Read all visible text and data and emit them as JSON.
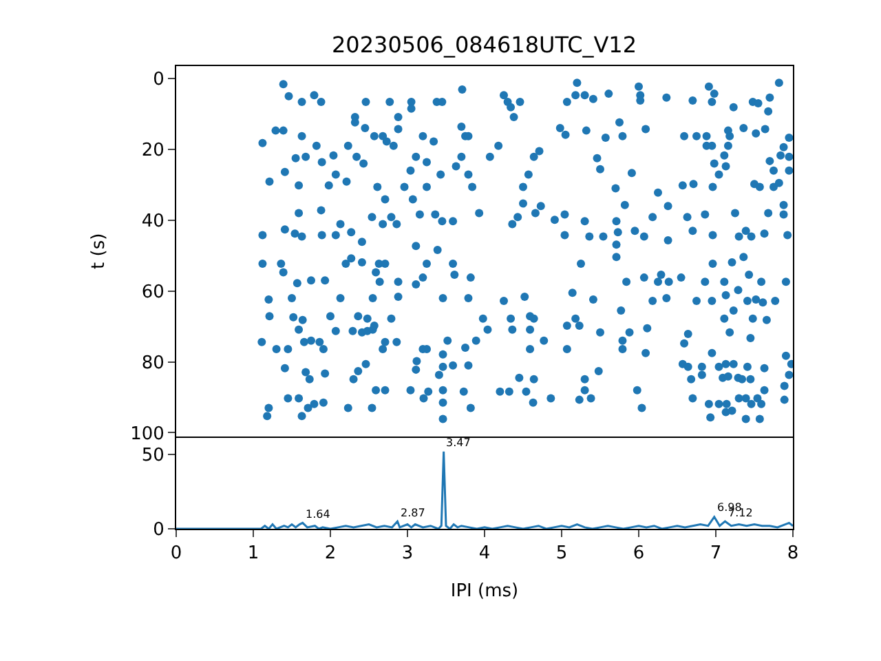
{
  "chart_data": [
    {
      "type": "scatter",
      "title": "20230506_084618UTC_V12",
      "ylabel": "t (s)",
      "marker": "circle",
      "tick_labels": "y",
      "xlim": [
        0,
        8
      ],
      "xticks": [
        0,
        1,
        2,
        3,
        4,
        5,
        6,
        7,
        8
      ],
      "ylim": [
        101,
        -3.5
      ],
      "yticks": [
        0,
        20,
        40,
        60,
        80,
        100
      ],
      "series": [
        {
          "color": "#1f77b4",
          "x": [
            1.39,
            1.46,
            1.63,
            1.79,
            1.88,
            2.46,
            2.77,
            3.05,
            3.05,
            3.38,
            3.45,
            3.71,
            2.32,
            2.32,
            1.29,
            1.39,
            1.63,
            2.45,
            2.57,
            2.68,
            2.73,
            2.82,
            2.88,
            2.88,
            3.2,
            3.34,
            3.7,
            3.75,
            5.2,
            4.25,
            4.3,
            4.34,
            4.38,
            4.46,
            5.07,
            5.18,
            5.3,
            5.41,
            5.61,
            6.0,
            6.02,
            6.02,
            6.36,
            6.7,
            6.91,
            6.98,
            6.95,
            7.23,
            7.48,
            7.55,
            7.7,
            7.82,
            7.68,
            4.98,
            5.05,
            5.32,
            5.75,
            5.79,
            6.09,
            5.57,
            6.59,
            6.75,
            6.88,
            7.16,
            7.18,
            7.36,
            7.52,
            7.64,
            7.95,
            6.88,
            6.95,
            7.16,
            1.12,
            1.21,
            1.41,
            1.59,
            1.59,
            1.41,
            1.54,
            1.63,
            1.12,
            1.89,
            2.07,
            1.88,
            1.98,
            2.07,
            2.13,
            2.21,
            2.27,
            2.27,
            2.41,
            1.55,
            1.68,
            1.82,
            1.89,
            2.04,
            2.23,
            2.34,
            2.43,
            2.61,
            2.71,
            2.54,
            2.68,
            2.79,
            2.86,
            2.96,
            3.04,
            3.11,
            3.07,
            3.16,
            3.11,
            3.25,
            3.25,
            3.36,
            3.39,
            3.45,
            3.59,
            3.43,
            3.63,
            3.7,
            3.79,
            3.84,
            3.93,
            4.07,
            3.79,
            4.18,
            4.36,
            4.43,
            4.5,
            4.5,
            4.57,
            4.64,
            4.71,
            4.66,
            4.73,
            4.91,
            5.04,
            5.04,
            5.3,
            5.36,
            5.46,
            5.5,
            5.54,
            5.7,
            5.82,
            5.91,
            5.71,
            5.73,
            5.71,
            5.95,
            6.07,
            6.18,
            6.25,
            6.38,
            6.38,
            6.57,
            6.71,
            6.63,
            6.7,
            6.86,
            6.96,
            6.96,
            6.98,
            7.04,
            7.13,
            7.11,
            7.25,
            7.3,
            7.39,
            7.46,
            7.5,
            7.57,
            7.63,
            7.68,
            7.75,
            7.82,
            7.88,
            7.88,
            7.93,
            7.7,
            7.75,
            7.84,
            7.95,
            7.88,
            7.95,
            1.12,
            1.36,
            1.39,
            1.57,
            1.75,
            1.93,
            2.2,
            2.41,
            2.63,
            2.71,
            2.59,
            2.64,
            2.88,
            3.11,
            3.2,
            3.25,
            3.59,
            3.61,
            3.82,
            1.2,
            1.5,
            1.21,
            1.52,
            1.64,
            1.59,
            2.13,
            2.0,
            2.07,
            2.29,
            2.36,
            2.48,
            2.41,
            2.48,
            2.55,
            2.57,
            2.55,
            2.79,
            2.88,
            1.11,
            1.3,
            1.45,
            1.66,
            1.75,
            1.86,
            1.91,
            1.41,
            1.68,
            1.73,
            1.93,
            2.3,
            2.36,
            2.46,
            2.68,
            2.71,
            2.86,
            2.59,
            2.71,
            3.04,
            3.21,
            3.27,
            3.12,
            3.11,
            3.2,
            3.25,
            3.41,
            3.46,
            3.46,
            3.52,
            3.59,
            3.46,
            3.46,
            3.46,
            3.73,
            3.75,
            3.79,
            3.82,
            3.98,
            4.04,
            3.46,
            3.79,
            1.2,
            1.18,
            1.45,
            1.59,
            1.63,
            1.71,
            1.79,
            1.91,
            2.23,
            2.54,
            5.71,
            5.25,
            5.14,
            4.25,
            4.52,
            4.34,
            4.36,
            4.59,
            4.64,
            4.59,
            4.77,
            4.59,
            3.89,
            5.07,
            5.18,
            5.23,
            5.07,
            5.41,
            5.5,
            5.84,
            5.77,
            5.88,
            5.79,
            5.79,
            6.09,
            6.11,
            6.07,
            6.25,
            6.29,
            6.39,
            6.18,
            6.36,
            6.55,
            6.86,
            6.75,
            6.95,
            6.96,
            7.11,
            7.21,
            7.36,
            7.43,
            7.59,
            7.91,
            7.29,
            7.13,
            7.41,
            7.52,
            7.61,
            7.77,
            7.23,
            7.11,
            7.48,
            7.66,
            7.18,
            7.45,
            6.64,
            6.59,
            7.91,
            7.98,
            7.95,
            7.89,
            7.89,
            6.57,
            6.64,
            6.82,
            6.82,
            6.68,
            6.95,
            7.04,
            7.13,
            7.23,
            7.09,
            7.16,
            7.29,
            7.34,
            7.41,
            7.45,
            7.63,
            7.63,
            7.3,
            7.39,
            7.54,
            7.46,
            7.59,
            6.7,
            6.91,
            7.04,
            7.14,
            7.13,
            7.21,
            6.93,
            7.39,
            7.57,
            5.48,
            5.3,
            5.3,
            5.38,
            5.23,
            5.98,
            6.04,
            4.45,
            4.64,
            4.2,
            4.32,
            4.54,
            4.63,
            4.86
          ],
          "values": [
            1.6,
            5.0,
            6.6,
            4.7,
            6.6,
            6.6,
            6.6,
            6.6,
            8.5,
            6.6,
            6.6,
            3.1,
            10.9,
            12.4,
            14.7,
            14.7,
            16.3,
            14.0,
            16.3,
            16.3,
            17.8,
            19.0,
            10.9,
            14.3,
            16.3,
            17.8,
            13.6,
            16.3,
            1.2,
            4.7,
            6.6,
            8.1,
            10.9,
            6.6,
            6.6,
            4.7,
            4.7,
            5.8,
            4.3,
            2.3,
            4.7,
            6.2,
            5.4,
            6.2,
            2.3,
            4.3,
            6.6,
            8.1,
            6.6,
            7.0,
            5.4,
            1.2,
            9.3,
            14.0,
            15.9,
            14.7,
            12.4,
            16.3,
            14.3,
            16.7,
            16.3,
            16.3,
            16.3,
            14.7,
            16.3,
            14.0,
            15.5,
            14.3,
            16.7,
            19.0,
            19.0,
            19.0,
            18.2,
            29.1,
            26.4,
            30.2,
            38.0,
            42.6,
            43.8,
            44.6,
            44.2,
            44.2,
            44.2,
            37.2,
            30.2,
            27.1,
            41.1,
            29.1,
            43.4,
            50.8,
            46.1,
            22.5,
            22.1,
            19.0,
            23.6,
            21.7,
            19.0,
            22.1,
            24.0,
            30.6,
            34.1,
            39.1,
            41.1,
            39.1,
            41.1,
            30.6,
            26.0,
            22.1,
            34.1,
            38.4,
            47.3,
            23.6,
            30.6,
            38.4,
            48.4,
            40.3,
            40.3,
            27.1,
            24.8,
            22.1,
            27.1,
            30.6,
            38.0,
            22.1,
            16.3,
            19.0,
            41.1,
            39.1,
            35.3,
            30.6,
            27.1,
            22.1,
            20.5,
            38.0,
            36.0,
            39.9,
            38.4,
            44.2,
            40.3,
            44.6,
            22.5,
            25.6,
            44.6,
            31.0,
            35.7,
            26.7,
            40.3,
            43.4,
            46.9,
            43.0,
            44.6,
            39.1,
            32.2,
            36.0,
            45.7,
            30.2,
            29.8,
            39.1,
            43.0,
            38.4,
            30.6,
            44.2,
            24.0,
            27.1,
            24.8,
            21.7,
            38.0,
            44.6,
            43.0,
            44.6,
            29.8,
            30.6,
            43.8,
            38.0,
            30.6,
            29.5,
            35.7,
            38.4,
            44.2,
            23.3,
            26.0,
            21.7,
            26.0,
            19.4,
            22.1,
            52.3,
            52.3,
            54.7,
            57.8,
            57.0,
            57.0,
            52.3,
            51.9,
            52.3,
            52.3,
            54.7,
            57.4,
            57.4,
            58.1,
            56.2,
            52.3,
            52.3,
            55.4,
            56.2,
            62.4,
            62.0,
            67.1,
            67.4,
            68.2,
            70.9,
            62.0,
            67.1,
            71.3,
            71.3,
            67.1,
            67.8,
            71.7,
            71.3,
            70.9,
            69.8,
            62.0,
            67.8,
            61.6,
            74.4,
            76.4,
            76.4,
            74.4,
            74.0,
            74.4,
            76.4,
            81.8,
            82.9,
            84.9,
            83.3,
            84.9,
            82.6,
            80.6,
            76.4,
            74.4,
            74.4,
            88.0,
            88.0,
            88.0,
            90.3,
            88.4,
            79.8,
            82.2,
            76.4,
            76.4,
            83.7,
            77.9,
            81.4,
            74.0,
            81.0,
            88.0,
            91.5,
            96.1,
            88.4,
            76.0,
            81.0,
            93.0,
            67.8,
            70.9,
            62.0,
            62.0,
            93.0,
            95.3,
            90.3,
            90.3,
            95.3,
            93.0,
            91.9,
            91.5,
            93.0,
            93.0,
            50.4,
            52.3,
            60.5,
            62.8,
            61.6,
            67.8,
            70.9,
            67.1,
            67.8,
            70.9,
            74.0,
            76.4,
            74.0,
            69.8,
            67.8,
            69.8,
            76.4,
            62.4,
            71.7,
            57.4,
            65.5,
            71.7,
            74.0,
            76.4,
            77.5,
            70.5,
            56.2,
            57.4,
            55.4,
            57.4,
            62.8,
            62.0,
            56.2,
            57.4,
            62.8,
            62.8,
            52.3,
            57.4,
            51.9,
            50.4,
            55.4,
            57.4,
            57.4,
            59.7,
            61.2,
            62.8,
            62.4,
            63.2,
            62.8,
            65.5,
            67.8,
            67.8,
            68.2,
            71.7,
            73.3,
            72.1,
            74.8,
            78.3,
            80.6,
            83.7,
            86.8,
            90.7,
            80.6,
            81.4,
            81.4,
            83.7,
            84.9,
            77.5,
            81.4,
            80.6,
            80.6,
            84.5,
            84.1,
            84.5,
            84.9,
            81.4,
            84.9,
            81.8,
            88.0,
            90.3,
            90.3,
            90.3,
            91.9,
            91.9,
            90.3,
            91.9,
            91.9,
            91.9,
            94.2,
            93.8,
            95.7,
            96.1,
            96.1,
            82.6,
            84.9,
            88.0,
            90.3,
            90.7,
            88.0,
            93.0,
            84.5,
            84.9,
            88.4,
            88.4,
            88.4,
            91.5,
            90.3
          ]
        }
      ]
    },
    {
      "type": "line",
      "xlabel": "IPI (ms)",
      "marker": "none",
      "line_style": "solid",
      "xlim": [
        0,
        8
      ],
      "xticks": [
        0,
        1,
        2,
        3,
        4,
        5,
        6,
        7,
        8
      ],
      "ylim": [
        0,
        61
      ],
      "yticks": [
        0,
        50
      ],
      "annotations": [
        {
          "text": "1.64",
          "x": 1.64,
          "y": 4
        },
        {
          "text": "2.87",
          "x": 2.87,
          "y": 5
        },
        {
          "text": "3.47",
          "x": 3.47,
          "y": 52
        },
        {
          "text": "6.98",
          "x": 6.98,
          "y": 8
        },
        {
          "text": "7.12",
          "x": 7.12,
          "y": 5
        }
      ],
      "series": [
        {
          "color": "#1f77b4",
          "x": [
            0,
            1.0,
            1.1,
            1.15,
            1.2,
            1.25,
            1.3,
            1.4,
            1.45,
            1.5,
            1.55,
            1.6,
            1.64,
            1.7,
            1.8,
            1.85,
            1.9,
            2.0,
            2.1,
            2.2,
            2.3,
            2.4,
            2.5,
            2.6,
            2.7,
            2.8,
            2.87,
            2.9,
            3.0,
            3.05,
            3.1,
            3.2,
            3.3,
            3.4,
            3.44,
            3.47,
            3.5,
            3.55,
            3.6,
            3.65,
            3.7,
            3.8,
            3.9,
            4.0,
            4.1,
            4.2,
            4.3,
            4.4,
            4.5,
            4.6,
            4.7,
            4.8,
            4.9,
            5.0,
            5.1,
            5.2,
            5.3,
            5.4,
            5.5,
            5.6,
            5.7,
            5.8,
            5.9,
            6.0,
            6.1,
            6.2,
            6.3,
            6.4,
            6.5,
            6.6,
            6.7,
            6.8,
            6.9,
            6.98,
            7.05,
            7.12,
            7.2,
            7.3,
            7.4,
            7.5,
            7.6,
            7.7,
            7.8,
            7.9,
            7.95,
            8.0
          ],
          "values": [
            0,
            0,
            0,
            2,
            0,
            3,
            0,
            2,
            1,
            3,
            1,
            3,
            4,
            1,
            2,
            0,
            1,
            0,
            1,
            2,
            1,
            2,
            3,
            1,
            2,
            1,
            5,
            1,
            3,
            1,
            3,
            1,
            2,
            0,
            2,
            52,
            2,
            0,
            3,
            1,
            2,
            1,
            0,
            1,
            0,
            1,
            2,
            1,
            0,
            1,
            2,
            0,
            1,
            2,
            1,
            3,
            1,
            0,
            1,
            2,
            1,
            0,
            1,
            2,
            1,
            2,
            0,
            1,
            2,
            1,
            2,
            3,
            2,
            8,
            2,
            5,
            2,
            3,
            2,
            3,
            2,
            2,
            1,
            3,
            4,
            2
          ]
        }
      ]
    }
  ]
}
